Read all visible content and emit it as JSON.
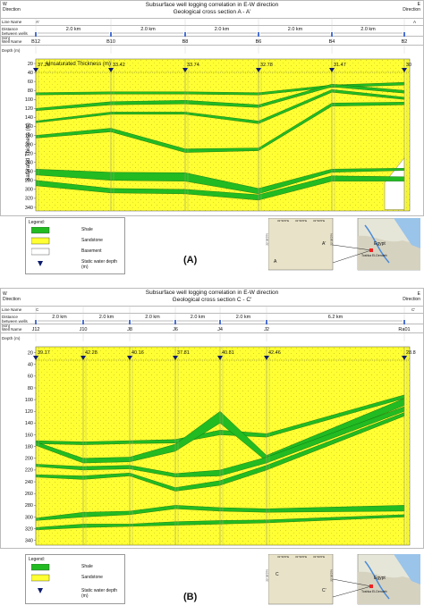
{
  "panels": [
    {
      "id": "A",
      "dir_left": "W",
      "dir_left_sub": "Direction",
      "dir_right": "E",
      "dir_right_sub": "Direction",
      "title_line1": "Subsurface well logging correlation in E-W direction",
      "title_line2": "Geological cross section A - A'",
      "row_labels": {
        "line_name": "Line Name",
        "distance": "Distance between wells (km)",
        "well_name": "Well Name",
        "depth": "Depth (m)"
      },
      "line_left": "A'",
      "line_right": "A",
      "distances": [
        "2.0 km",
        "2.0 km",
        "2.0 km",
        "2.0 km",
        "2.0 km"
      ],
      "wells": [
        "B12",
        "B10",
        "B8",
        "B6",
        "B4",
        "B2"
      ],
      "unsaturated_label": "Unsaturated Thickness (m)",
      "saturated_label": "Saturated Thickness (m)",
      "water_depths": [
        "37.26",
        "33.42",
        "33.74",
        "32.78",
        "31.47",
        "30"
      ],
      "depth_ticks": [
        "20",
        "40",
        "60",
        "80",
        "100",
        "120",
        "140",
        "160",
        "180",
        "200",
        "220",
        "240",
        "260",
        "280",
        "300",
        "320",
        "340"
      ],
      "fig_label": "(A)",
      "legend": {
        "title": "Legend:",
        "items": [
          "Shale",
          "Sandstone",
          "Basement",
          "Static water depth (m)"
        ]
      },
      "map": {
        "country": "Egypt",
        "place": "Toshka El-Dendeb",
        "section": "A",
        "section2": "A'",
        "coord_top": [
          "31°30'0\"E",
          "31°30'0\"E",
          "31°30'0\"E"
        ],
        "coord_left": "22°30'0\"N",
        "coord_right": "22°30'0\"N"
      }
    },
    {
      "id": "B",
      "dir_left": "W",
      "dir_left_sub": "Direction",
      "dir_right": "E",
      "dir_right_sub": "Direction",
      "title_line1": "Subsurface well logging correlation in E-W direction",
      "title_line2": "Geological cross section C - C'",
      "row_labels": {
        "line_name": "Line Name",
        "distance": "Distance between wells (km)",
        "well_name": "Well Name",
        "depth": "Depth (m)"
      },
      "line_left": "C",
      "line_right": "C'",
      "distances": [
        "2.0 km",
        "2.0 km",
        "2.0 km",
        "2.0 km",
        "2.0 km",
        "6.2 km"
      ],
      "wells": [
        "J12",
        "J10",
        "J8",
        "J6",
        "J4",
        "J2",
        "Ra01"
      ],
      "water_depths": [
        "39.17",
        "42.28",
        "40.16",
        "37.81",
        "40.81",
        "42.46",
        "28.8"
      ],
      "depth_ticks": [
        "20",
        "40",
        "60",
        "80",
        "100",
        "120",
        "140",
        "160",
        "180",
        "200",
        "220",
        "240",
        "260",
        "280",
        "300",
        "320",
        "340"
      ],
      "fig_label": "(B)",
      "legend": {
        "title": "Legend:",
        "items": [
          "Shale",
          "Sandstone",
          "Static water depth (m)"
        ]
      },
      "map": {
        "country": "Egypt",
        "place": "Toshka El-Dendeb",
        "section": "C",
        "section2": "C'",
        "coord_top": [
          "31°30'0\"E",
          "31°30'0\"E",
          "31°30'0\"E"
        ],
        "coord_left": "22°30'0\"N",
        "coord_right": "22°30'0\"N"
      }
    }
  ],
  "colors": {
    "sandstone": "#ffff33",
    "shale": "#22bb22",
    "basement": "#ffffff",
    "marker": "#0d1b6e",
    "well_marker": "#2a5bd7"
  }
}
